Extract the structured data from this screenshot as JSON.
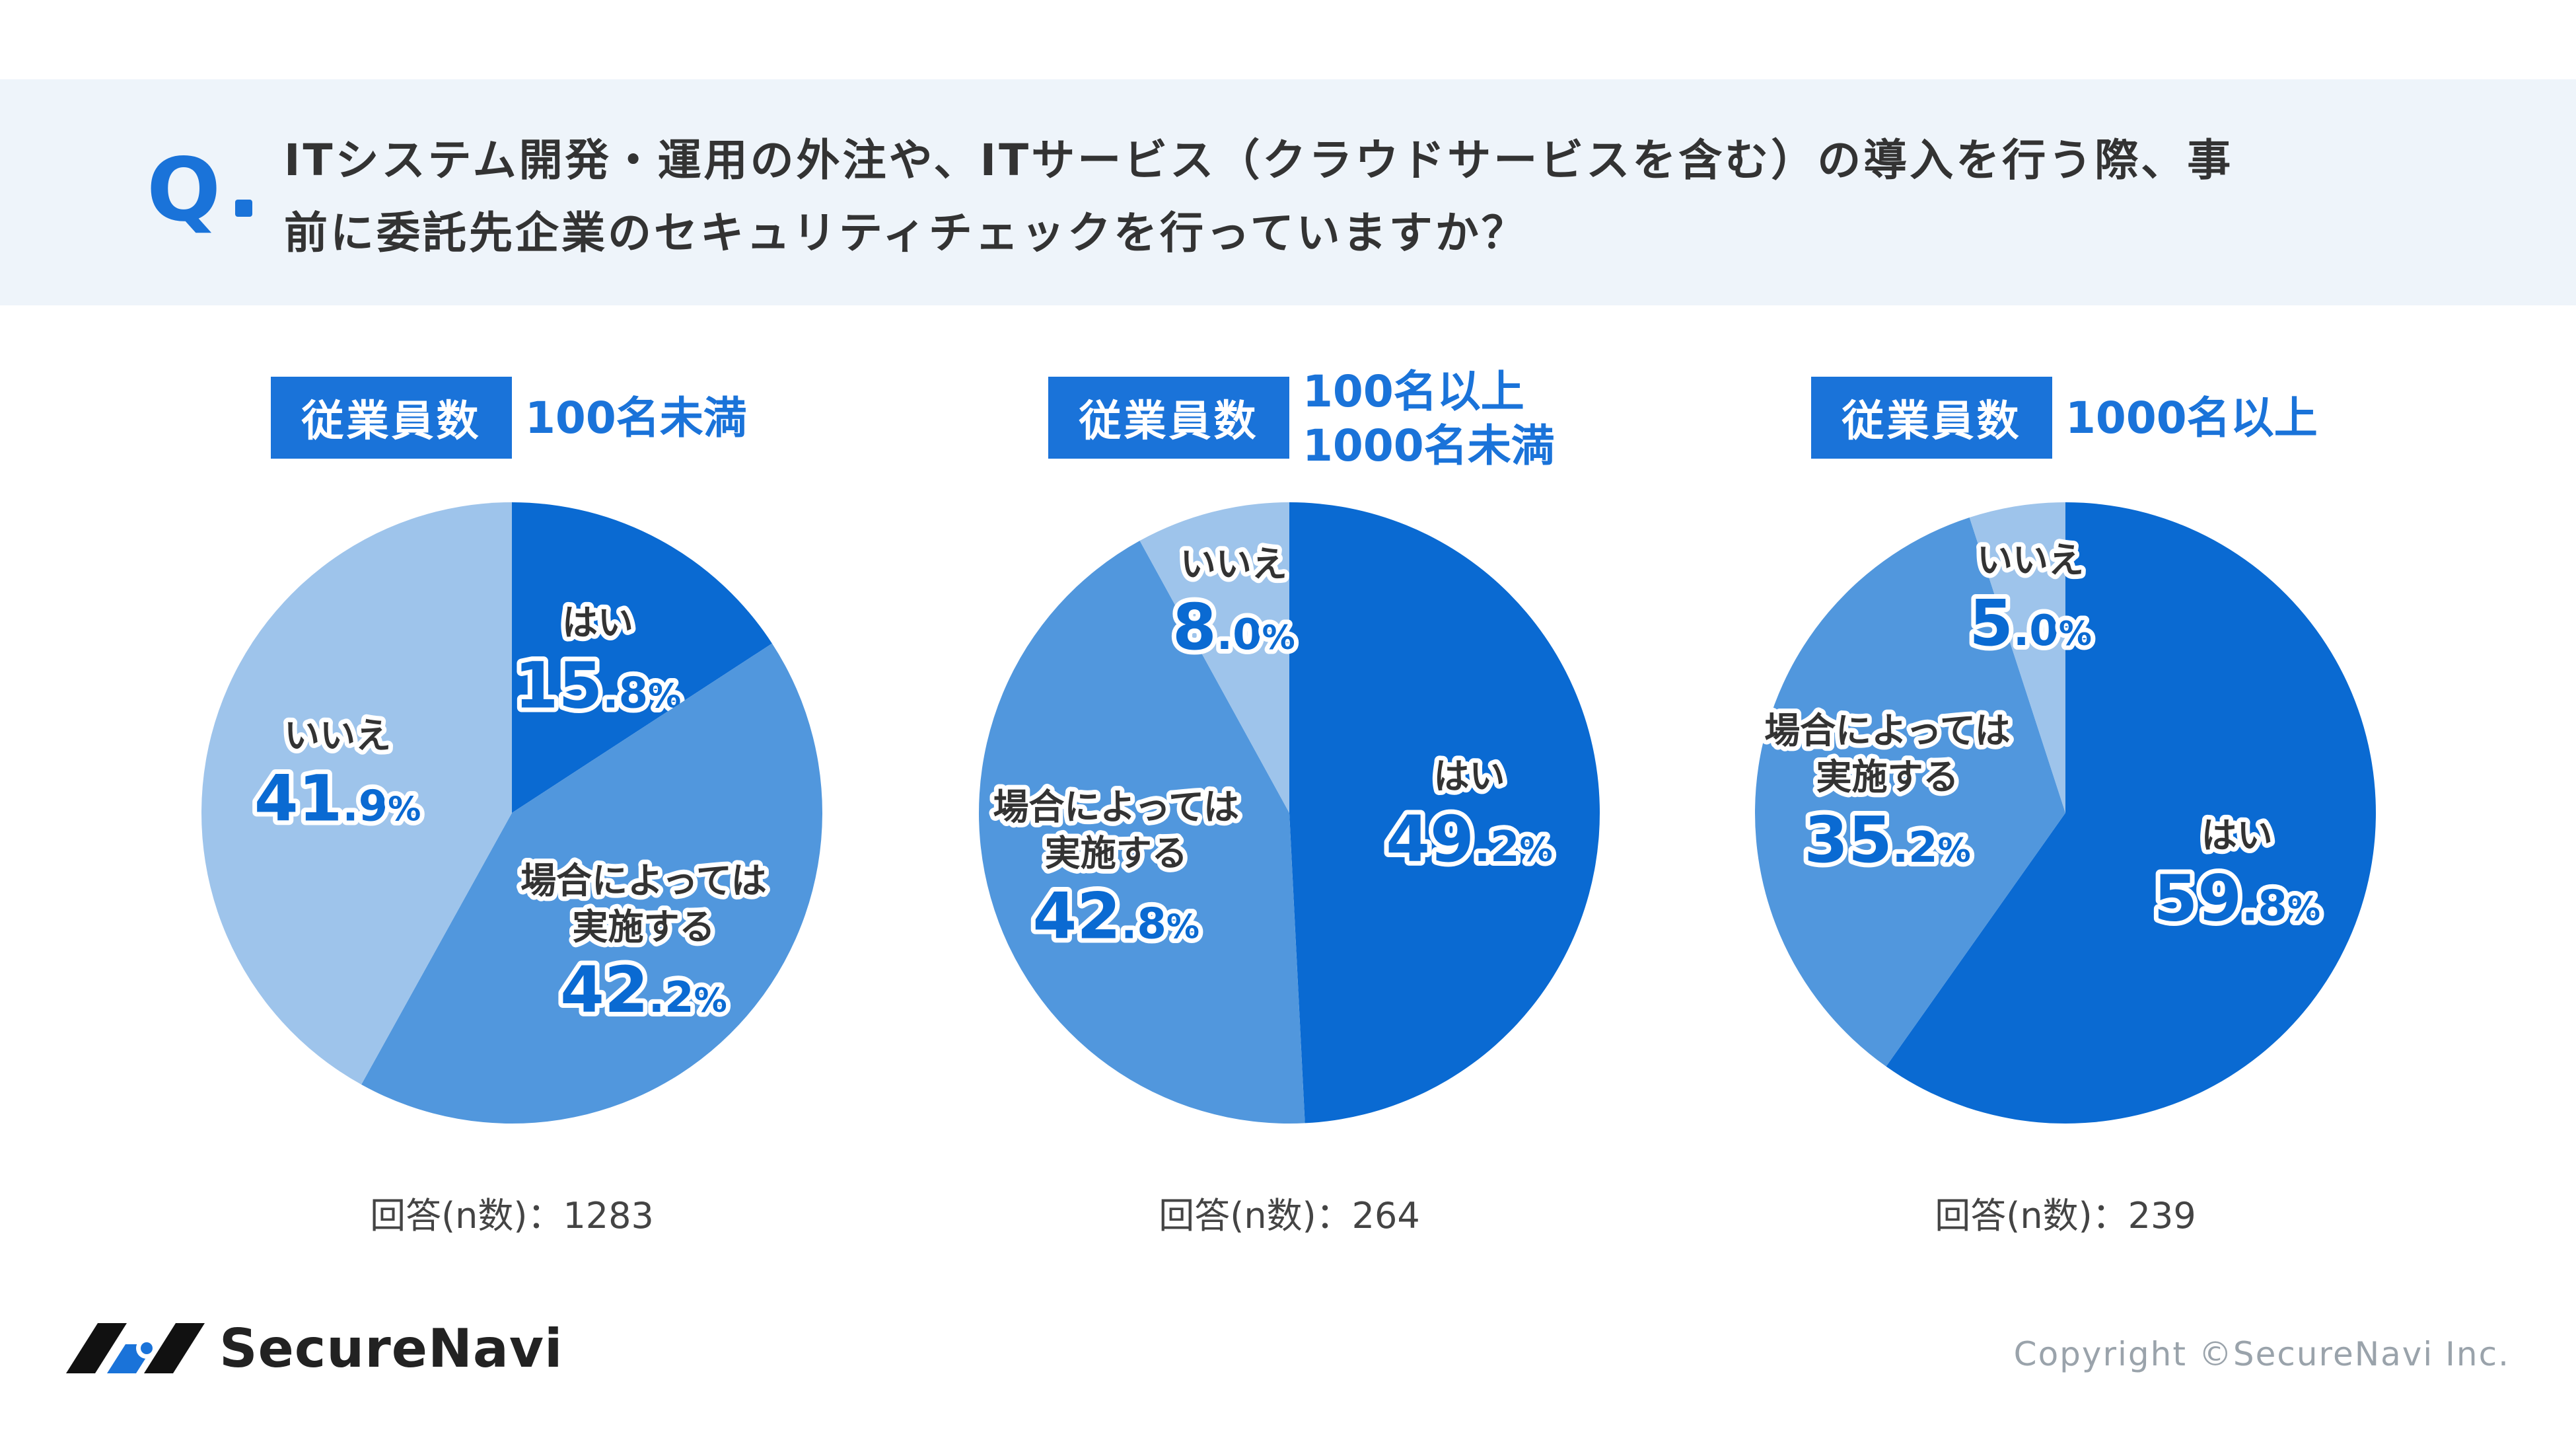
{
  "question": {
    "marker": "Q",
    "line1": "ITシステム開発・運用の外注や、ITサービス（クラウドサービスを含む）の導入を行う際、事",
    "line2": "前に委託先企業のセキュリティチェックを行っていますか？"
  },
  "colors": {
    "yes": "#0a6ad2",
    "conditional": "#5197dd",
    "no": "#9ec4eb",
    "accent": "#1a73d9",
    "banner": "#eef4fa"
  },
  "employee_label": "従業員数",
  "segment_labels": {
    "yes": "はい",
    "conditional_line1": "場合によっては",
    "conditional_line2": "実施する",
    "no": "いいえ"
  },
  "chart_data": [
    {
      "type": "pie",
      "group": "100名未満",
      "group_lines": [
        "100名未満"
      ],
      "n_label": "回答(n数)：1283",
      "n": 1283,
      "slices": [
        {
          "key": "yes",
          "value": 15.8
        },
        {
          "key": "conditional",
          "value": 42.2
        },
        {
          "key": "no",
          "value": 41.9
        }
      ]
    },
    {
      "type": "pie",
      "group": "100名以上 1000名未満",
      "group_lines": [
        "100名以上",
        "1000名未満"
      ],
      "n_label": "回答(n数)：264",
      "n": 264,
      "slices": [
        {
          "key": "yes",
          "value": 49.2
        },
        {
          "key": "conditional",
          "value": 42.8
        },
        {
          "key": "no",
          "value": 8.0
        }
      ]
    },
    {
      "type": "pie",
      "group": "1000名以上",
      "group_lines": [
        "1000名以上"
      ],
      "n_label": "回答(n数)：239",
      "n": 239,
      "slices": [
        {
          "key": "yes",
          "value": 59.8
        },
        {
          "key": "conditional",
          "value": 35.2
        },
        {
          "key": "no",
          "value": 5.0
        }
      ]
    }
  ],
  "footer": {
    "logo_text": "SecureNavi",
    "copyright": "Copyright ©SecureNavi Inc."
  }
}
